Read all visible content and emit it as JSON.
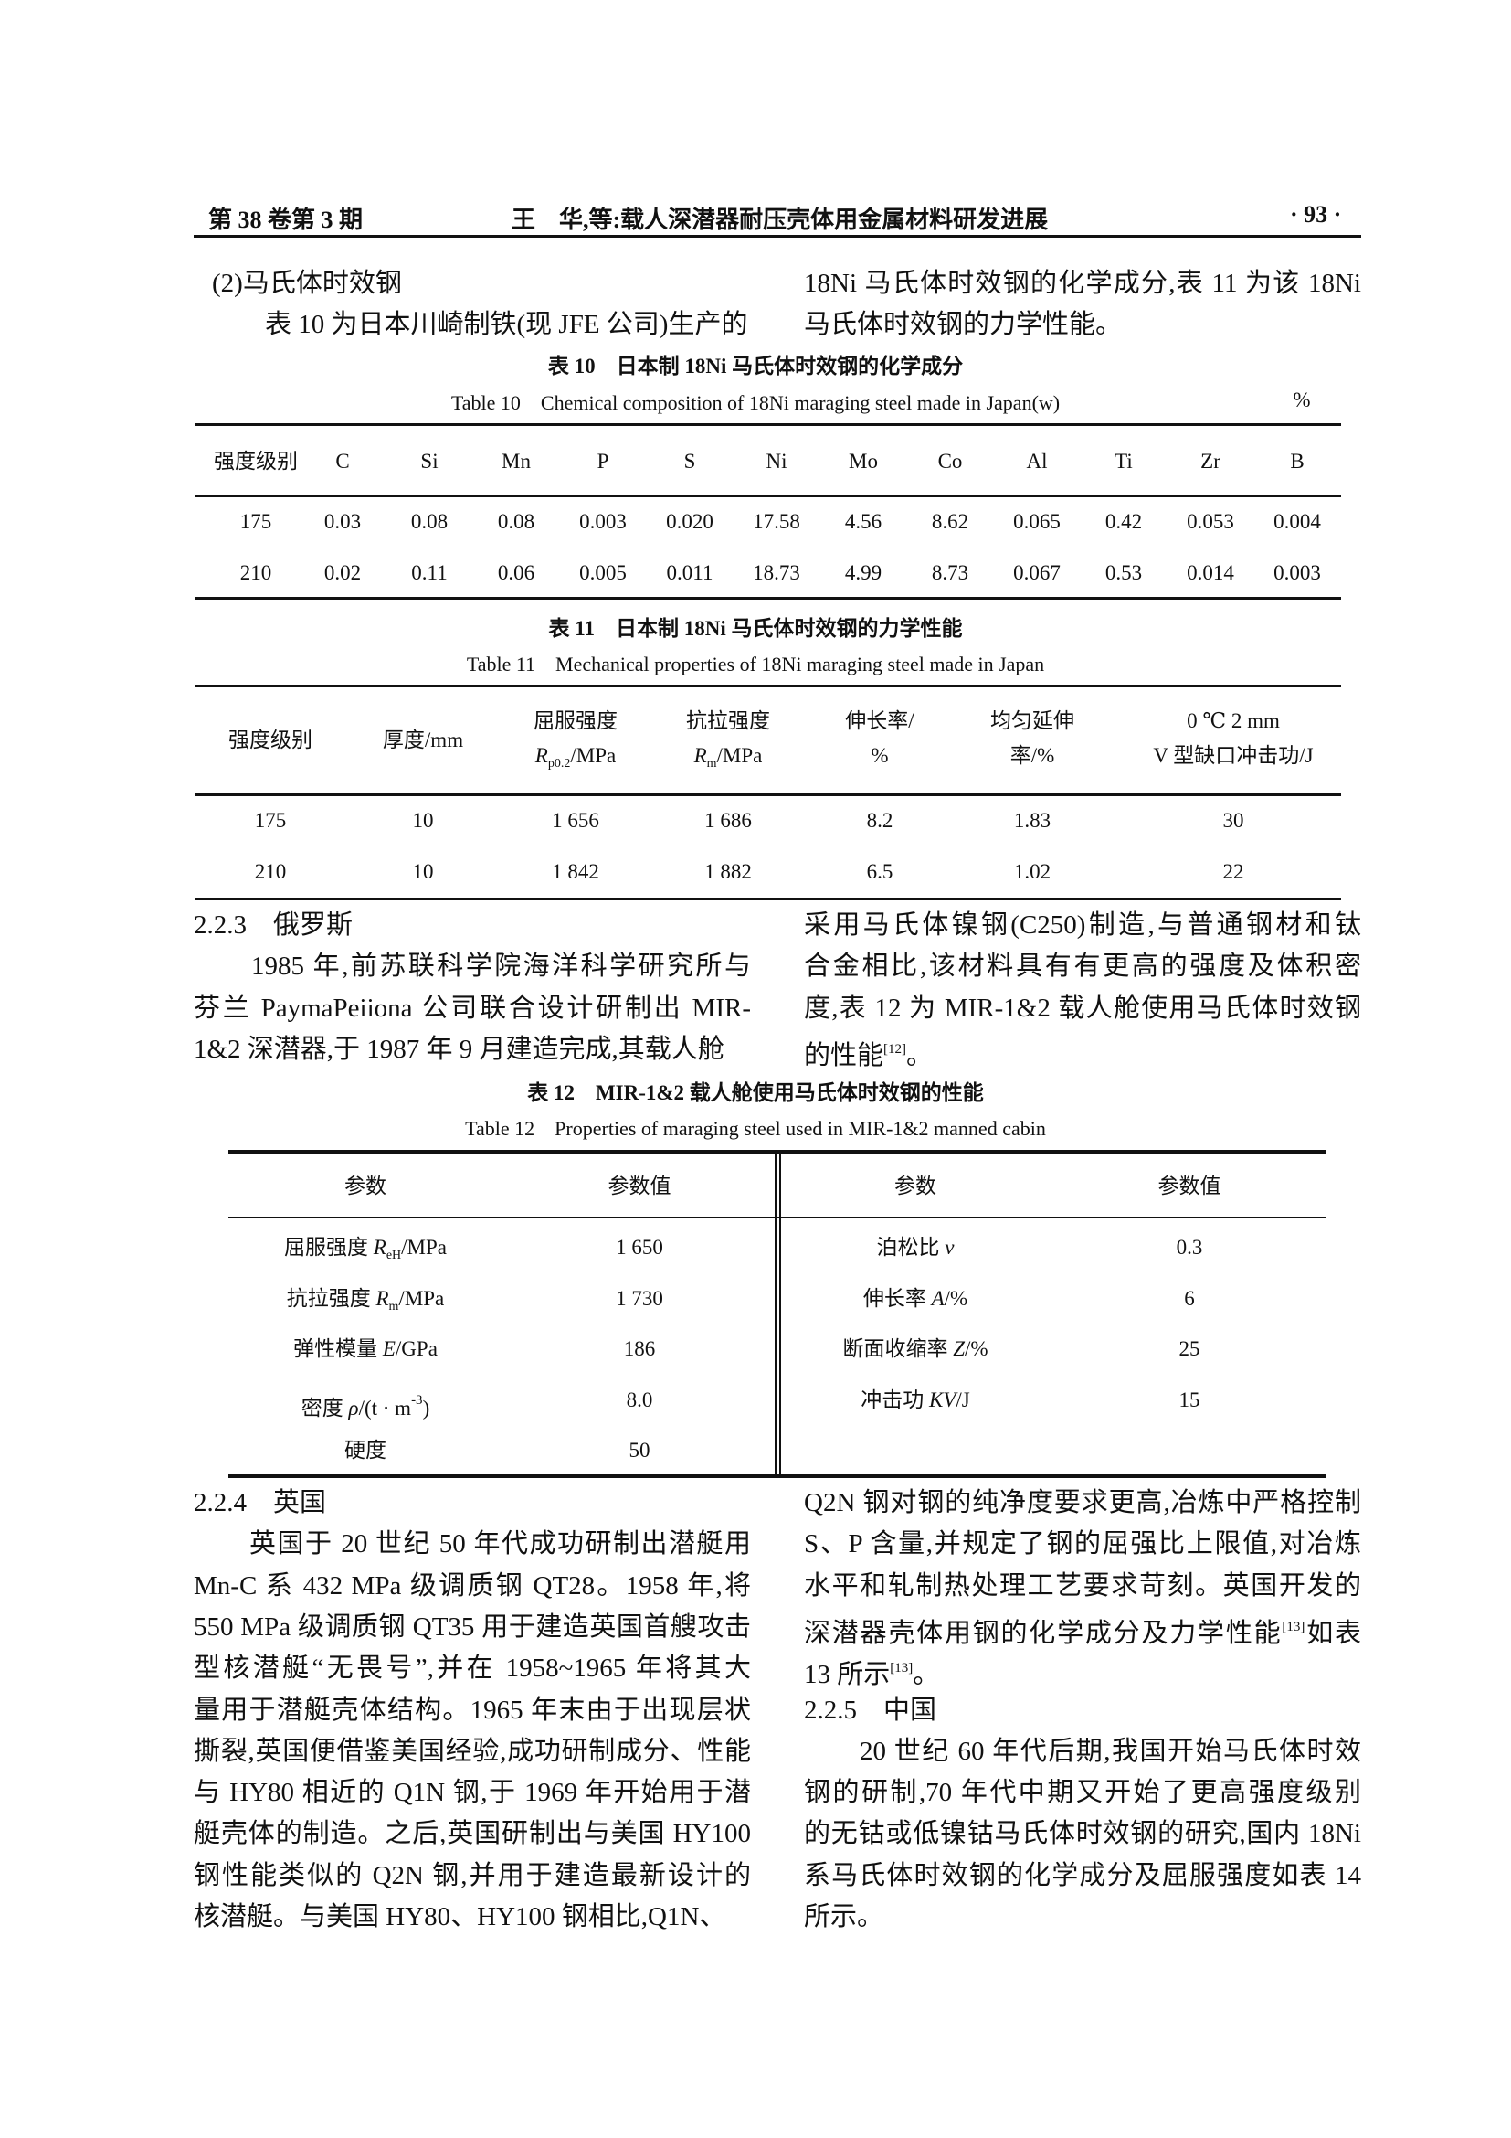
{
  "header": {
    "left": "第 38 卷第 3 期",
    "center": "王　华,等:载人深潜器耐压壳体用金属材料研发进展",
    "right": "· 93 ·"
  },
  "intro": {
    "left_lines": [
      "(2)马氏体时效钢",
      "　　表 10 为日本川崎制铁(现 JFE 公司)生产的"
    ],
    "right_lines": [
      "18Ni 马氏体时效钢的化学成分,表 11 为该 18Ni",
      "马氏体时效钢的力学性能。"
    ]
  },
  "table10": {
    "caption_cn": "表 10　日本制 18Ni 马氏体时效钢的化学成分",
    "caption_en": "Table 10　Chemical composition of 18Ni maraging steel made in Japan(w)",
    "unit": "%",
    "headers": [
      "强度级别",
      "C",
      "Si",
      "Mn",
      "P",
      "S",
      "Ni",
      "Mo",
      "Co",
      "Al",
      "Ti",
      "Zr",
      "B"
    ],
    "rows": [
      [
        "175",
        "0.03",
        "0.08",
        "0.08",
        "0.003",
        "0.020",
        "17.58",
        "4.56",
        "8.62",
        "0.065",
        "0.42",
        "0.053",
        "0.004"
      ],
      [
        "210",
        "0.02",
        "0.11",
        "0.06",
        "0.005",
        "0.011",
        "18.73",
        "4.99",
        "8.73",
        "0.067",
        "0.53",
        "0.014",
        "0.003"
      ]
    ]
  },
  "table11": {
    "caption_cn": "表 11　日本制 18Ni 马氏体时效钢的力学性能",
    "caption_en": "Table 11　Mechanical properties of 18Ni maraging steel made in Japan",
    "headers": [
      [
        [
          {
            "t": "强度级别"
          }
        ]
      ],
      [
        [
          {
            "t": "厚度/mm"
          }
        ]
      ],
      [
        [
          {
            "t": "屈服强度"
          }
        ],
        [
          {
            "i": "R"
          },
          {
            "sub": "p0.2"
          },
          {
            "t": "/MPa"
          }
        ]
      ],
      [
        [
          {
            "t": "抗拉强度"
          }
        ],
        [
          {
            "i": "R"
          },
          {
            "sub": "m"
          },
          {
            "t": "/MPa"
          }
        ]
      ],
      [
        [
          {
            "t": "伸长率/"
          }
        ],
        [
          {
            "t": "%"
          }
        ]
      ],
      [
        [
          {
            "t": "均匀延伸"
          }
        ],
        [
          {
            "t": "率/%"
          }
        ]
      ],
      [
        [
          {
            "t": "0 ℃ 2 mm"
          }
        ],
        [
          {
            "t": "V 型缺口冲击功/J"
          }
        ]
      ]
    ],
    "rows": [
      [
        "175",
        "10",
        "1 656",
        "1 686",
        "8.2",
        "1.83",
        "30"
      ],
      [
        "210",
        "10",
        "1 842",
        "1 882",
        "6.5",
        "1.02",
        "22"
      ]
    ]
  },
  "sec223": {
    "left_lines": [
      [
        {
          "t": "2.2.3　俄罗斯"
        }
      ],
      [
        {
          "t": "　　1985 年,前苏联科学院海洋科学研究所与"
        }
      ],
      [
        {
          "t": "芬兰 PaymaPeiiona 公司联合设计研制出 MIR-"
        }
      ],
      [
        {
          "t": "1&2 深潜器,于 1987 年 9 月建造完成,其载人舱"
        }
      ]
    ],
    "right_lines": [
      [
        {
          "t": "采用马氏体镍钢(C250)制造,与普通钢材和钛"
        }
      ],
      [
        {
          "t": "合金相比,该材料具有有更高的强度及体积密"
        }
      ],
      [
        {
          "t": "度,表 12 为 MIR-1&2 载人舱使用马氏体时效钢"
        }
      ],
      [
        {
          "t": "的性能"
        },
        {
          "sup": "[12]"
        },
        {
          "t": "。"
        }
      ]
    ]
  },
  "table12": {
    "caption_cn": "表 12　MIR-1&2 载人舱使用马氏体时效钢的性能",
    "caption_en": "Table 12　Properties of maraging steel used in MIR-1&2 manned cabin",
    "headers": [
      "参数",
      "参数值",
      "参数",
      "参数值"
    ],
    "left_rows": [
      {
        "param": [
          {
            "t": "屈服强度 "
          },
          {
            "i": "R"
          },
          {
            "sub": "eH"
          },
          {
            "t": "/MPa"
          }
        ],
        "value": "1 650"
      },
      {
        "param": [
          {
            "t": "抗拉强度 "
          },
          {
            "i": "R"
          },
          {
            "sub": "m"
          },
          {
            "t": "/MPa"
          }
        ],
        "value": "1 730"
      },
      {
        "param": [
          {
            "t": "弹性模量 "
          },
          {
            "i": "E"
          },
          {
            "t": "/GPa"
          }
        ],
        "value": "186"
      },
      {
        "param": [
          {
            "t": "密度 "
          },
          {
            "i": "ρ"
          },
          {
            "t": "/(t · m"
          },
          {
            "sup": "-3"
          },
          {
            "t": ")"
          }
        ],
        "value": "8.0"
      },
      {
        "param": [
          {
            "t": "硬度"
          }
        ],
        "value": "50"
      }
    ],
    "right_rows": [
      {
        "param": [
          {
            "t": "泊松比 "
          },
          {
            "i": "ν"
          }
        ],
        "value": "0.3"
      },
      {
        "param": [
          {
            "t": "伸长率 "
          },
          {
            "i": "A"
          },
          {
            "t": "/%"
          }
        ],
        "value": "6"
      },
      {
        "param": [
          {
            "t": "断面收缩率 "
          },
          {
            "i": "Z"
          },
          {
            "t": "/%"
          }
        ],
        "value": "25"
      },
      {
        "param": [
          {
            "t": "冲击功 "
          },
          {
            "i": "KV"
          },
          {
            "t": "/J"
          }
        ],
        "value": "15"
      }
    ]
  },
  "sec224_225": {
    "left_lines": [
      [
        {
          "t": "2.2.4　英国"
        }
      ],
      [
        {
          "t": "　　英国于 20 世纪 50 年代成功研制出潜艇用"
        }
      ],
      [
        {
          "t": "Mn-C 系 432 MPa 级调质钢 QT28。1958 年,将"
        }
      ],
      [
        {
          "t": "550 MPa 级调质钢 QT35 用于建造英国首艘攻击"
        }
      ],
      [
        {
          "t": "型核潜艇“无畏号”,并在 1958~1965 年将其大"
        }
      ],
      [
        {
          "t": "量用于潜艇壳体结构。1965 年末由于出现层状"
        }
      ],
      [
        {
          "t": "撕裂,英国便借鉴美国经验,成功研制成分、性能"
        }
      ],
      [
        {
          "t": "与 HY80 相近的 Q1N 钢,于 1969 年开始用于潜"
        }
      ],
      [
        {
          "t": "艇壳体的制造。之后,英国研制出与美国 HY100"
        }
      ],
      [
        {
          "t": "钢性能类似的 Q2N 钢,并用于建造最新设计的"
        }
      ],
      [
        {
          "t": "核潜艇。与美国 HY80、HY100 钢相比,Q1N、"
        }
      ]
    ],
    "right_lines": [
      [
        {
          "t": "Q2N 钢对钢的纯净度要求更高,冶炼中严格控制"
        }
      ],
      [
        {
          "t": "S、P 含量,并规定了钢的屈强比上限值,对冶炼"
        }
      ],
      [
        {
          "t": "水平和轧制热处理工艺要求苛刻。英国开发的"
        }
      ],
      [
        {
          "t": "深潜器壳体用钢的化学成分及力学性能"
        },
        {
          "sup": "[13]"
        },
        {
          "t": "如表"
        }
      ],
      [
        {
          "t": "13 所示"
        },
        {
          "sup": "[13]"
        },
        {
          "t": "。"
        }
      ],
      [
        {
          "t": "2.2.5　中国"
        }
      ],
      [
        {
          "t": "　　20 世纪 60 年代后期,我国开始马氏体时效"
        }
      ],
      [
        {
          "t": "钢的研制,70 年代中期又开始了更高强度级别"
        }
      ],
      [
        {
          "t": "的无钴或低镍钴马氏体时效钢的研究,国内 18Ni"
        }
      ],
      [
        {
          "t": "系马氏体时效钢的化学成分及屈服强度如表 14"
        }
      ],
      [
        {
          "t": "所示。"
        }
      ]
    ]
  }
}
